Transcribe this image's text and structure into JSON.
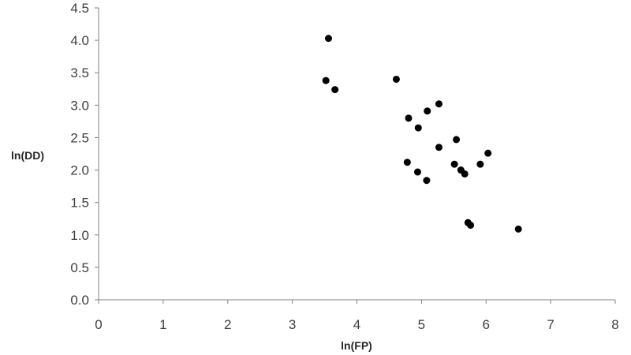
{
  "chart_data": {
    "type": "scatter",
    "title": "",
    "xlabel": "ln(FP)",
    "ylabel": "ln(DD)",
    "xlim": [
      0,
      8
    ],
    "ylim": [
      0,
      4.5
    ],
    "x_ticks": [
      "0",
      "1",
      "2",
      "3",
      "4",
      "5",
      "6",
      "7",
      "8"
    ],
    "y_ticks": [
      "0.0",
      "0.5",
      "1.0",
      "1.5",
      "2.0",
      "2.5",
      "3.0",
      "3.5",
      "4.0",
      "4.5"
    ],
    "grid": false,
    "legend": "none",
    "marker_color": "#000000",
    "series": [
      {
        "points": [
          {
            "x": 3.56,
            "y": 4.03
          },
          {
            "x": 3.52,
            "y": 3.38
          },
          {
            "x": 3.66,
            "y": 3.24
          },
          {
            "x": 4.61,
            "y": 3.4
          },
          {
            "x": 5.27,
            "y": 3.02
          },
          {
            "x": 5.09,
            "y": 2.91
          },
          {
            "x": 4.8,
            "y": 2.8
          },
          {
            "x": 4.95,
            "y": 2.65
          },
          {
            "x": 5.54,
            "y": 2.47
          },
          {
            "x": 5.27,
            "y": 2.35
          },
          {
            "x": 6.03,
            "y": 2.26
          },
          {
            "x": 4.78,
            "y": 2.12
          },
          {
            "x": 5.51,
            "y": 2.09
          },
          {
            "x": 5.91,
            "y": 2.09
          },
          {
            "x": 5.61,
            "y": 2.0
          },
          {
            "x": 4.94,
            "y": 1.97
          },
          {
            "x": 5.67,
            "y": 1.94
          },
          {
            "x": 5.08,
            "y": 1.84
          },
          {
            "x": 5.72,
            "y": 1.19
          },
          {
            "x": 5.76,
            "y": 1.15
          },
          {
            "x": 6.5,
            "y": 1.09
          }
        ]
      }
    ]
  }
}
